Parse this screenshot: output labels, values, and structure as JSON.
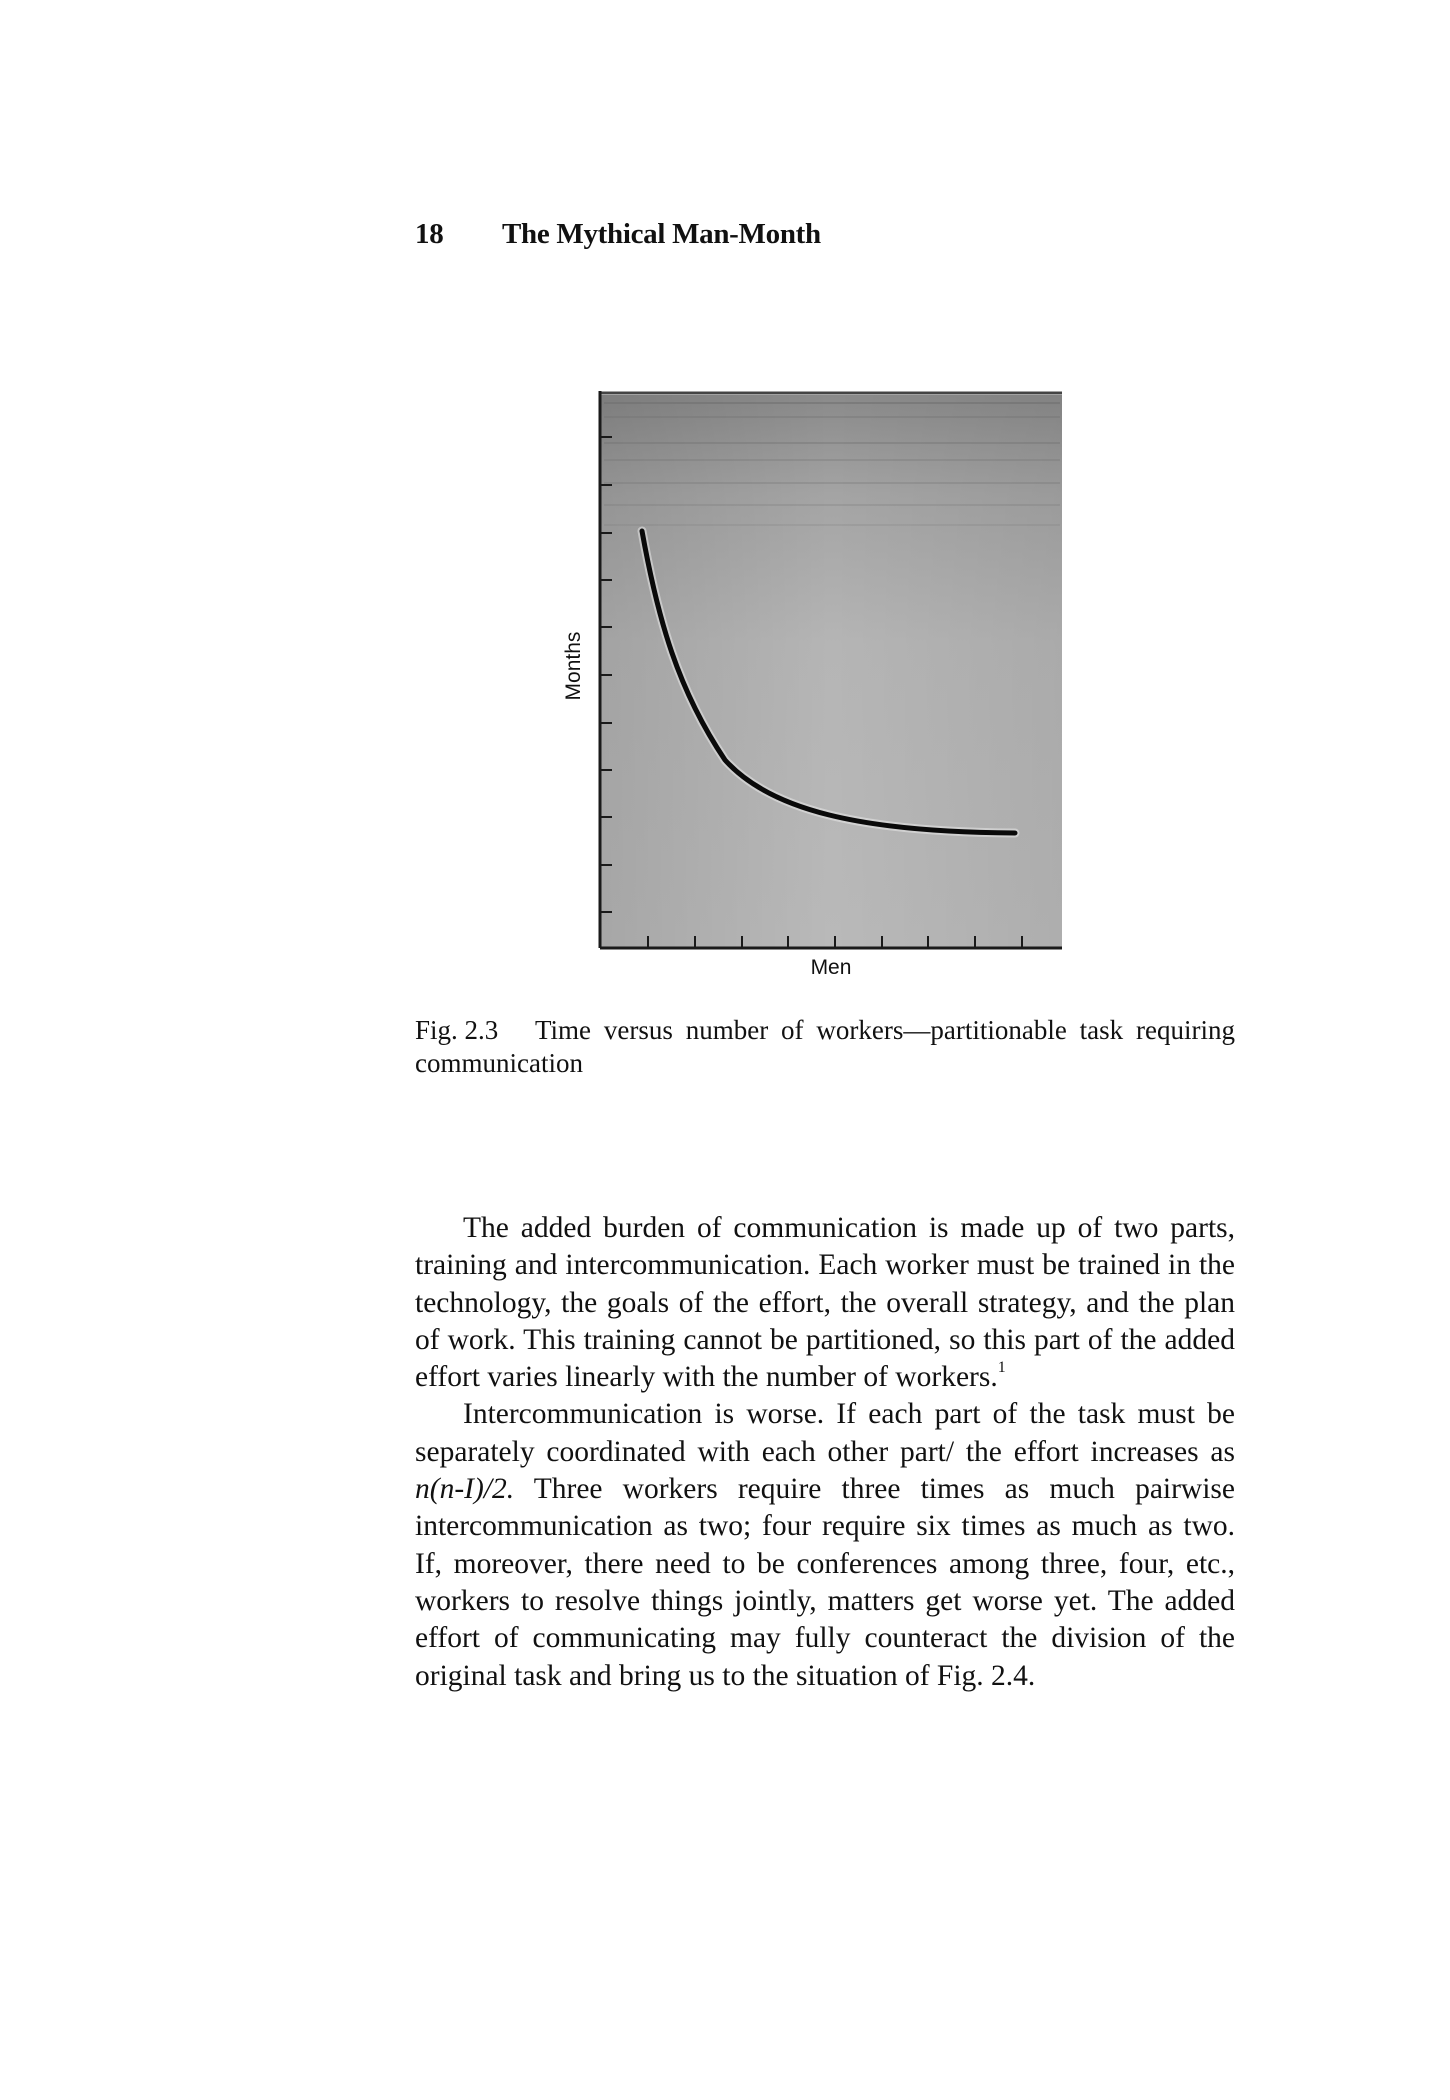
{
  "header": {
    "page_number": "18",
    "book_title": "The Mythical Man-Month"
  },
  "figure": {
    "y_axis_label": "Months",
    "x_axis_label": "Men",
    "caption_number": "Fig. 2.3",
    "caption_text": "Time versus number of workers—partitionable task requiring communication"
  },
  "body": {
    "paragraph_1": "The added burden of communication is made up of two parts, training and intercommunication. Each worker must be trained in the technology, the goals of the effort, the overall strategy, and the plan of work. This training cannot be partitioned, so this part of the added effort varies linearly with the number of workers.",
    "paragraph_1_note": "1",
    "paragraph_2_part_1": "Intercommunication is worse. If each part of the task must be separately coordinated with each other part/ the effort increases as",
    "paragraph_2_formula": "n(n-I)/2.",
    "paragraph_2_part_2": "Three workers require three times as much pairwise intercommunication as two; four require six times as much as two. If, moreover, there need to be conferences among three, four, etc., workers to resolve things jointly, matters get worse yet. The added effort of communicating may fully counteract the division of the original task and bring us to the situation of Fig. 2.4."
  }
}
